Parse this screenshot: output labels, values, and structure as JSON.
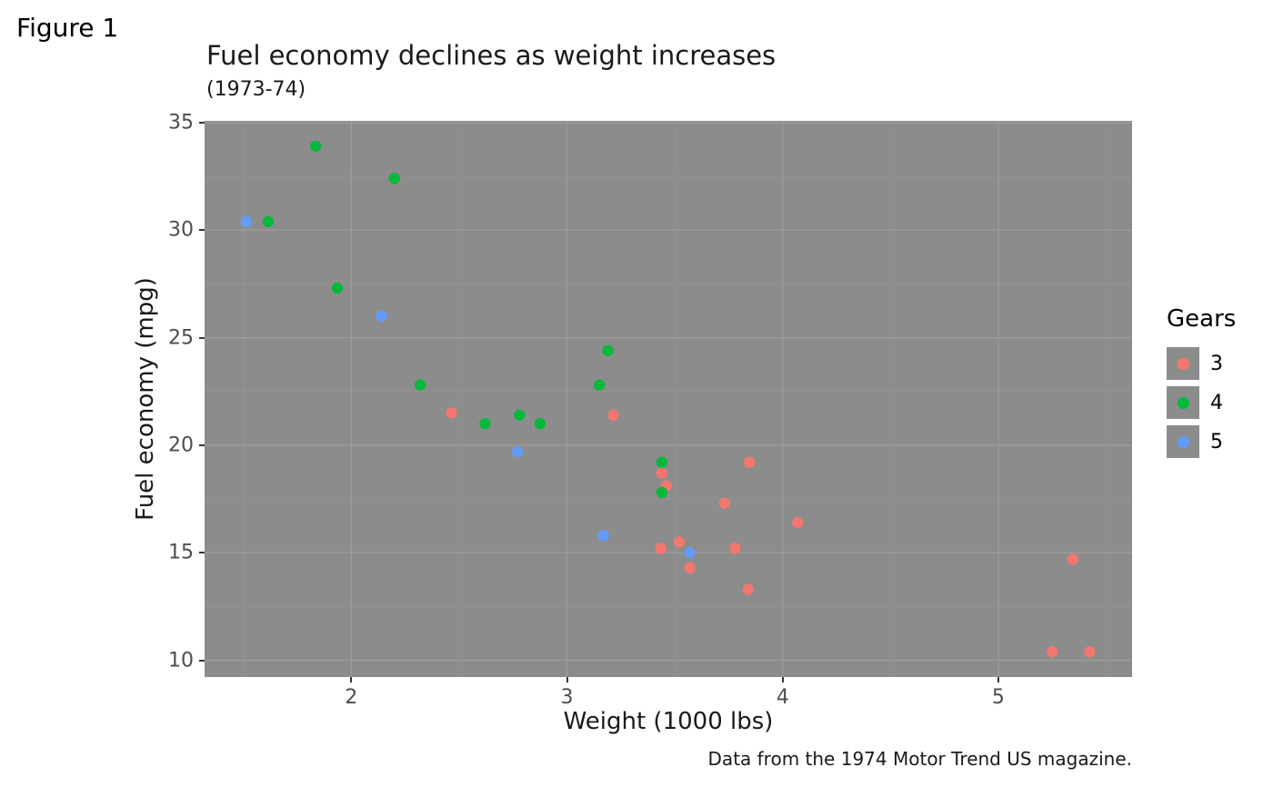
{
  "figure_tag": "Figure 1",
  "caption": "Data from the 1974 Motor Trend US magazine.",
  "chart_data": {
    "type": "scatter",
    "title": "Fuel economy declines as weight increases",
    "subtitle": "(1973-74)",
    "xlabel": "Weight (1000 lbs)",
    "ylabel": "Fuel economy (mpg)",
    "xlim": [
      1.32,
      5.62
    ],
    "ylim": [
      9.22,
      35.08
    ],
    "x_ticks": [
      2,
      3,
      4,
      5
    ],
    "x_tick_labels": [
      "2",
      "3",
      "4",
      "5"
    ],
    "y_ticks": [
      10,
      15,
      20,
      25,
      30,
      35
    ],
    "y_tick_labels": [
      "10",
      "15",
      "20",
      "25",
      "30",
      "35"
    ],
    "grid": true,
    "panel_background": "#8C8C8C",
    "grid_major_color": "#9B9B9B",
    "grid_minor_color": "#939393",
    "legend": {
      "title": "Gears",
      "position": "right",
      "entries": [
        {
          "label": "3",
          "color": "#F8766D"
        },
        {
          "label": "4",
          "color": "#00BA38"
        },
        {
          "label": "5",
          "color": "#619CFF"
        }
      ]
    },
    "series": [
      {
        "name": "3",
        "color": "#F8766D",
        "points": [
          [
            3.215,
            21.4
          ],
          [
            3.44,
            18.7
          ],
          [
            3.46,
            18.1
          ],
          [
            3.57,
            14.3
          ],
          [
            4.07,
            16.4
          ],
          [
            3.73,
            17.3
          ],
          [
            3.78,
            15.2
          ],
          [
            5.25,
            10.4
          ],
          [
            5.424,
            10.4
          ],
          [
            5.345,
            14.7
          ],
          [
            2.465,
            21.5
          ],
          [
            3.52,
            15.5
          ],
          [
            3.435,
            15.2
          ],
          [
            3.84,
            13.3
          ],
          [
            3.845,
            19.2
          ]
        ]
      },
      {
        "name": "4",
        "color": "#00BA38",
        "points": [
          [
            2.62,
            21.0
          ],
          [
            2.875,
            21.0
          ],
          [
            2.32,
            22.8
          ],
          [
            3.19,
            24.4
          ],
          [
            3.15,
            22.8
          ],
          [
            3.44,
            19.2
          ],
          [
            3.44,
            17.8
          ],
          [
            2.2,
            32.4
          ],
          [
            1.615,
            30.4
          ],
          [
            1.835,
            33.9
          ],
          [
            1.935,
            27.3
          ],
          [
            2.78,
            21.4
          ]
        ]
      },
      {
        "name": "5",
        "color": "#619CFF",
        "points": [
          [
            2.14,
            26.0
          ],
          [
            1.513,
            30.4
          ],
          [
            3.17,
            15.8
          ],
          [
            2.77,
            19.7
          ],
          [
            3.57,
            15.0
          ]
        ]
      }
    ]
  }
}
